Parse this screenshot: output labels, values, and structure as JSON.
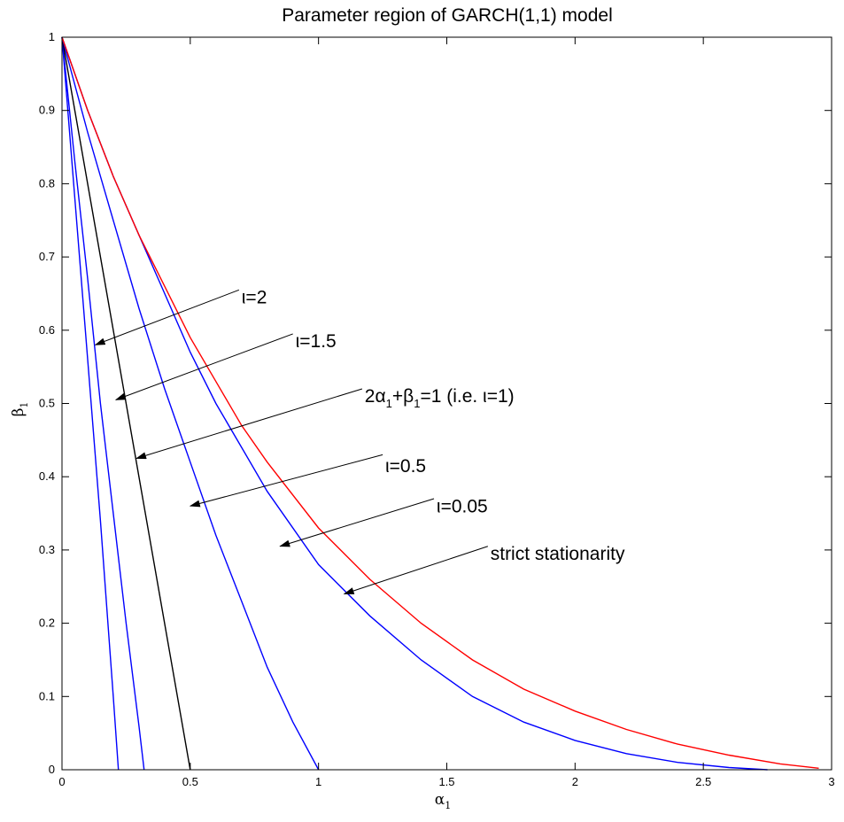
{
  "chart_data": {
    "type": "line",
    "title": "Parameter region of GARCH(1,1) model",
    "xlabel": {
      "base": "α",
      "sub": "1"
    },
    "ylabel": {
      "base": "β",
      "sub": "1"
    },
    "xlim": [
      0,
      3
    ],
    "ylim": [
      0,
      1
    ],
    "xticks": [
      0,
      0.5,
      1,
      1.5,
      2,
      2.5,
      3
    ],
    "xtick_labels": [
      "0",
      "0.5",
      "1",
      "1.5",
      "2",
      "2.5",
      "3"
    ],
    "yticks": [
      0,
      0.1,
      0.2,
      0.3,
      0.4,
      0.5,
      0.6,
      0.7,
      0.8,
      0.9,
      1
    ],
    "ytick_labels": [
      "0",
      "0.1",
      "0.2",
      "0.3",
      "0.4",
      "0.5",
      "0.6",
      "0.7",
      "0.8",
      "0.9",
      "1"
    ],
    "grid": false,
    "legend": "none",
    "series": [
      {
        "color": "#0000ff",
        "x": [
          0,
          0.05,
          0.1,
          0.15,
          0.2,
          0.22
        ],
        "y": [
          1,
          0.78,
          0.56,
          0.34,
          0.1,
          0
        ]
      },
      {
        "color": "#0000ff",
        "x": [
          0,
          0.05,
          0.1,
          0.15,
          0.2,
          0.25,
          0.3,
          0.32
        ],
        "y": [
          1,
          0.83,
          0.67,
          0.5,
          0.35,
          0.2,
          0.06,
          0
        ]
      },
      {
        "color": "#000000",
        "x": [
          0,
          0.5
        ],
        "y": [
          1,
          0
        ]
      },
      {
        "color": "#0000ff",
        "x": [
          0,
          0.1,
          0.2,
          0.3,
          0.4,
          0.5,
          0.6,
          0.7,
          0.8,
          0.9,
          1.0
        ],
        "y": [
          1,
          0.87,
          0.75,
          0.63,
          0.52,
          0.42,
          0.32,
          0.23,
          0.14,
          0.065,
          0
        ]
      },
      {
        "color": "#0000ff",
        "x": [
          0,
          0.1,
          0.2,
          0.3,
          0.4,
          0.5,
          0.6,
          0.7,
          0.8,
          1.0,
          1.2,
          1.4,
          1.6,
          1.8,
          2.0,
          2.2,
          2.4,
          2.6,
          2.75
        ],
        "y": [
          1,
          0.9,
          0.81,
          0.73,
          0.65,
          0.57,
          0.5,
          0.44,
          0.38,
          0.28,
          0.21,
          0.15,
          0.1,
          0.065,
          0.04,
          0.022,
          0.01,
          0.003,
          0
        ]
      },
      {
        "color": "#ff0000",
        "x": [
          0,
          0.1,
          0.2,
          0.3,
          0.4,
          0.5,
          0.6,
          0.7,
          0.8,
          1.0,
          1.2,
          1.4,
          1.6,
          1.8,
          2.0,
          2.2,
          2.4,
          2.6,
          2.8,
          2.95
        ],
        "y": [
          1,
          0.9,
          0.81,
          0.73,
          0.66,
          0.59,
          0.53,
          0.47,
          0.42,
          0.33,
          0.26,
          0.2,
          0.15,
          0.11,
          0.08,
          0.055,
          0.035,
          0.02,
          0.008,
          0.002
        ]
      }
    ],
    "annotations": [
      {
        "text": "ι=2",
        "x": 0.7,
        "y": 0.645,
        "arrow_from": [
          0.69,
          0.655
        ],
        "arrow_to": [
          0.13,
          0.58
        ]
      },
      {
        "text": "ι=1.5",
        "x": 0.91,
        "y": 0.585,
        "arrow_from": [
          0.9,
          0.595
        ],
        "arrow_to": [
          0.21,
          0.505
        ]
      },
      {
        "text": "2α1+β1=1 (i.e. ι=1)",
        "x": 1.18,
        "y": 0.51,
        "arrow_from": [
          1.17,
          0.52
        ],
        "arrow_to": [
          0.29,
          0.425
        ]
      },
      {
        "text": "ι=0.5",
        "x": 1.26,
        "y": 0.415,
        "arrow_from": [
          1.25,
          0.43
        ],
        "arrow_to": [
          0.5,
          0.36
        ]
      },
      {
        "text": "ι=0.05",
        "x": 1.46,
        "y": 0.36,
        "arrow_from": [
          1.45,
          0.37
        ],
        "arrow_to": [
          0.85,
          0.305
        ]
      },
      {
        "text": "strict stationarity",
        "x": 1.67,
        "y": 0.295,
        "arrow_from": [
          1.66,
          0.305
        ],
        "arrow_to": [
          1.1,
          0.24
        ]
      }
    ],
    "annotation_parts": {
      "stationarity_formula": {
        "c1": "2α",
        "s1": "1",
        "c2": "+β",
        "s2": "1",
        "c3": "=1 (i.e. ι=1)"
      }
    }
  }
}
